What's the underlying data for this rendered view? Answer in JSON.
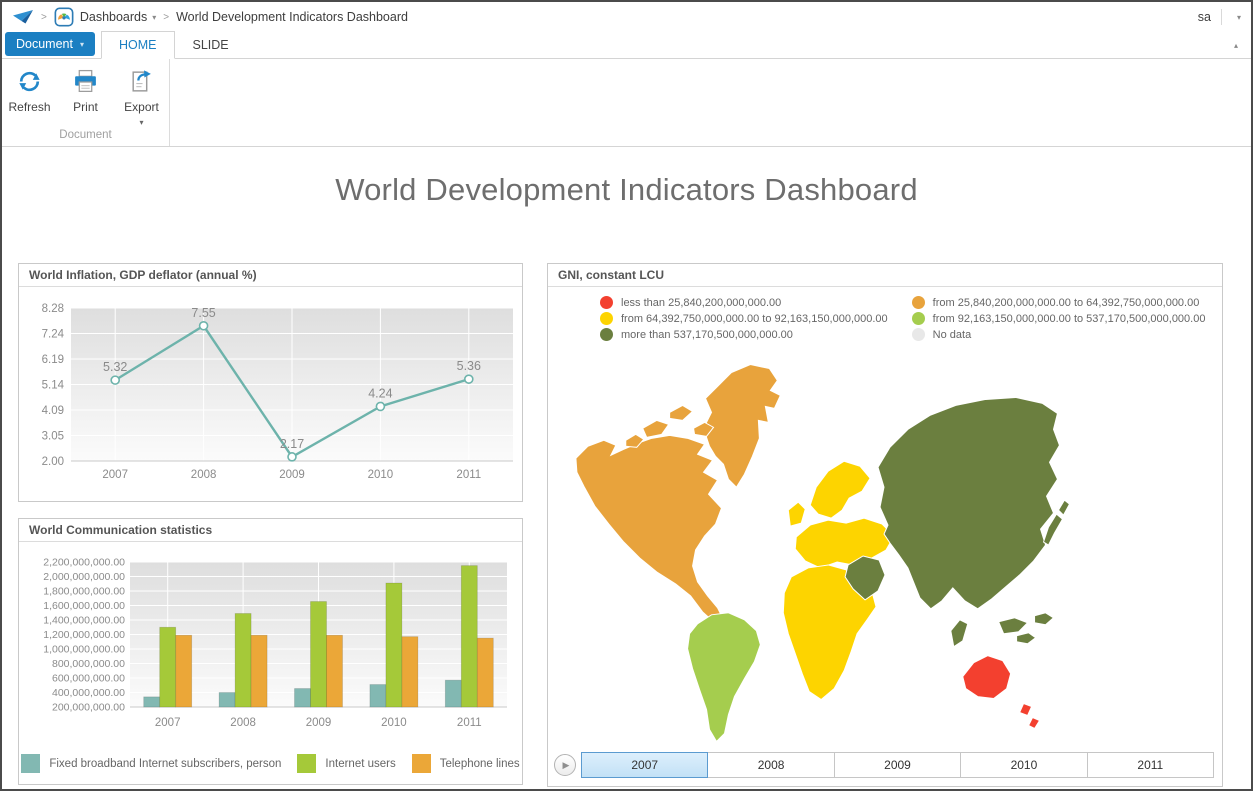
{
  "breadcrumb": {
    "dashboards_label": "Dashboards",
    "document_title": "World Development Indicators Dashboard",
    "user": "sa"
  },
  "ribbon": {
    "document_button": "Document",
    "tabs": [
      {
        "label": "HOME",
        "active": true
      },
      {
        "label": "SLIDE",
        "active": false
      }
    ],
    "toolbar": {
      "refresh_label": "Refresh",
      "print_label": "Print",
      "export_label": "Export"
    },
    "group_label": "Document"
  },
  "page_title": "World Development Indicators Dashboard",
  "panels": {
    "inflation": {
      "title": "World Inflation, GDP deflator (annual %)",
      "chart_data": {
        "type": "line",
        "categories": [
          "2007",
          "2008",
          "2009",
          "2010",
          "2011"
        ],
        "values": [
          5.32,
          7.55,
          2.17,
          4.24,
          5.36
        ],
        "y_ticks": [
          8.28,
          7.24,
          6.19,
          5.14,
          4.09,
          3.05,
          2.0
        ],
        "ylim": [
          2.0,
          8.28
        ],
        "line_color": "#6db3ab",
        "grid": "on",
        "point_labels": "on"
      }
    },
    "communication": {
      "title": "World Communication statistics",
      "chart_data": {
        "type": "bar",
        "categories": [
          "2007",
          "2008",
          "2009",
          "2010",
          "2011"
        ],
        "series": [
          {
            "name": "Fixed broadband Internet subscribers, person",
            "color": "#82b8b2",
            "values": [
              340000000,
              400000000,
              455000000,
              510000000,
              570000000
            ]
          },
          {
            "name": "Internet users",
            "color": "#a5c939",
            "values": [
              1300000000,
              1490000000,
              1655000000,
              1910000000,
              2150000000
            ]
          },
          {
            "name": "Telephone lines",
            "color": "#eba738",
            "values": [
              1190000000,
              1190000000,
              1190000000,
              1170000000,
              1150000000
            ]
          }
        ],
        "ylim": [
          200000000,
          2200000000
        ],
        "y_tick_step": 200000000,
        "legend_position": "bottom",
        "grid": "on"
      }
    },
    "map": {
      "title": "GNI, constant LCU",
      "colors": {
        "red": "#f3402f",
        "orange": "#e8a33c",
        "yellow": "#fdd400",
        "lightgreen": "#a5cd4e",
        "darkgreen": "#6b7f3f",
        "nodata": "#e8e8e8"
      },
      "legend": [
        {
          "color_key": "red",
          "label": "less than 25,840,200,000,000.00"
        },
        {
          "color_key": "orange",
          "label": "from 25,840,200,000,000.00 to 64,392,750,000,000.00"
        },
        {
          "color_key": "yellow",
          "label": "from 64,392,750,000,000.00 to 92,163,150,000,000.00"
        },
        {
          "color_key": "lightgreen",
          "label": "from 92,163,150,000,000.00 to 537,170,500,000,000.00"
        },
        {
          "color_key": "darkgreen",
          "label": "more than 537,170,500,000,000.00"
        },
        {
          "color_key": "nodata",
          "label": "No data"
        }
      ],
      "regions": [
        {
          "name": "north-america",
          "color_key": "orange"
        },
        {
          "name": "greenland",
          "color_key": "orange"
        },
        {
          "name": "arctic-islands",
          "color_key": "orange"
        },
        {
          "name": "south-america",
          "color_key": "lightgreen"
        },
        {
          "name": "europe",
          "color_key": "yellow"
        },
        {
          "name": "scandinavia",
          "color_key": "yellow"
        },
        {
          "name": "uk",
          "color_key": "yellow"
        },
        {
          "name": "africa",
          "color_key": "yellow"
        },
        {
          "name": "asia",
          "color_key": "darkgreen"
        },
        {
          "name": "arabia",
          "color_key": "darkgreen"
        },
        {
          "name": "japan",
          "color_key": "darkgreen"
        },
        {
          "name": "indonesia",
          "color_key": "darkgreen"
        },
        {
          "name": "madagascar",
          "color_key": "darkgreen"
        },
        {
          "name": "australia",
          "color_key": "red"
        },
        {
          "name": "new-zealand",
          "color_key": "red"
        }
      ],
      "years": [
        "2007",
        "2008",
        "2009",
        "2010",
        "2011"
      ],
      "selected_year": "2007"
    }
  }
}
